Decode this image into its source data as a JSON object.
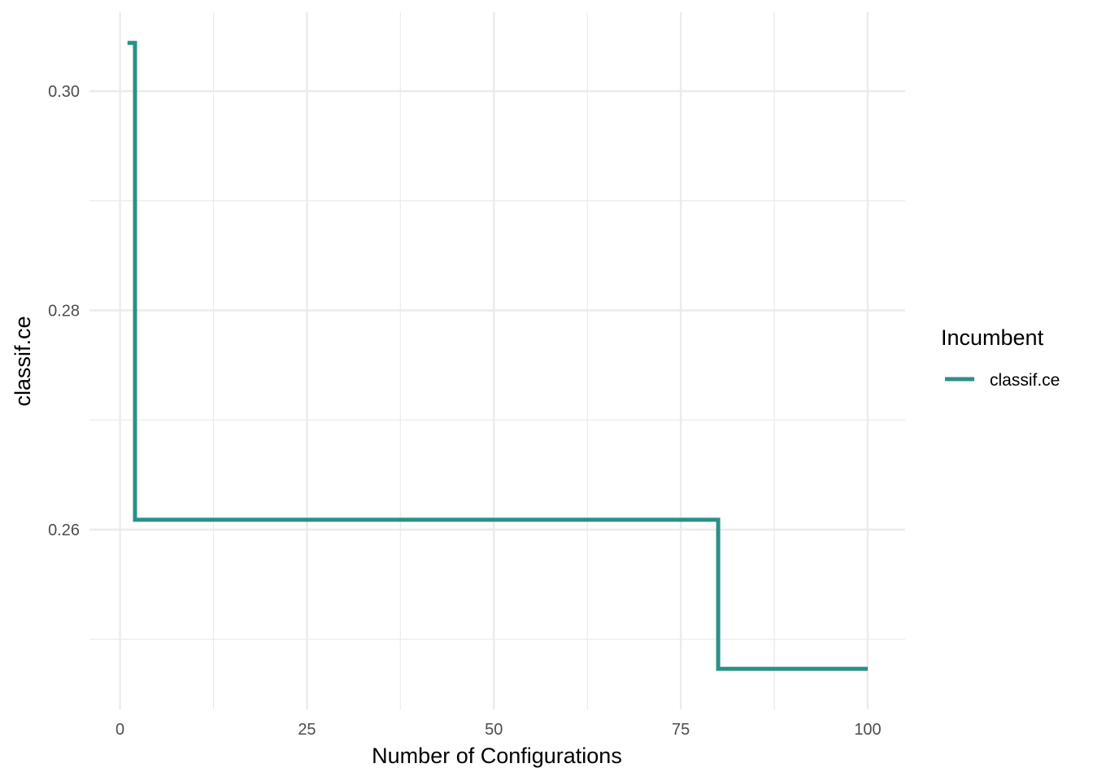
{
  "chart_data": {
    "type": "line",
    "step": true,
    "title": "",
    "xlabel": "Number of Configurations",
    "ylabel": "classif.ce",
    "xlim": [
      0,
      100
    ],
    "ylim": [
      0.2465,
      0.3055
    ],
    "x_ticks": [
      0,
      25,
      50,
      75,
      100
    ],
    "x_tick_labels": [
      "0",
      "25",
      "50",
      "75",
      "100"
    ],
    "y_ticks": [
      0.26,
      0.28,
      0.3
    ],
    "y_tick_labels": [
      "0.26",
      "0.28",
      "0.30"
    ],
    "grid": true,
    "legend": {
      "title": "Incumbent",
      "position": "right"
    },
    "series": [
      {
        "name": "classif.ce",
        "color": "#2a9088",
        "x": [
          1,
          2,
          2,
          80,
          80,
          100
        ],
        "y": [
          0.3044,
          0.3044,
          0.2609,
          0.2609,
          0.2473,
          0.2473
        ]
      }
    ]
  }
}
